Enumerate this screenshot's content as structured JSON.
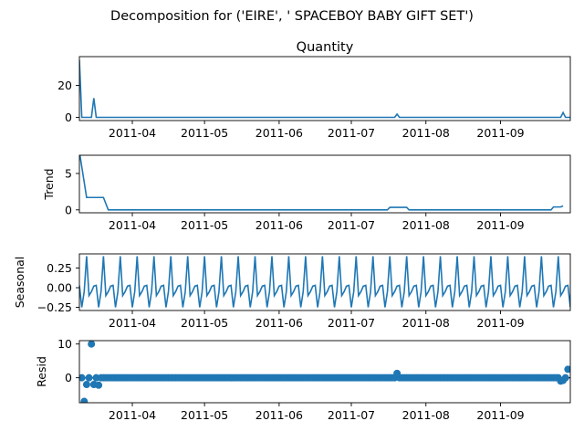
{
  "suptitle": "Decomposition for ('EIRE', ' SPACEBOY BABY GIFT SET')",
  "x_tick_labels": [
    "2011-04",
    "2011-05",
    "2011-06",
    "2011-07",
    "2011-08",
    "2011-09"
  ],
  "colors": {
    "series": "#1f77b4",
    "axis": "#000000",
    "background": "#ffffff"
  },
  "chart_data": [
    {
      "type": "line",
      "title": "Quantity",
      "ylabel": "",
      "x_start": "2011-03-10",
      "x_end": "2011-09-30",
      "ylim": [
        -2,
        38
      ],
      "yticks": [
        0,
        20
      ],
      "ytick_labels": [
        "0",
        "20"
      ],
      "points": [
        [
          "2011-03-10",
          36
        ],
        [
          "2011-03-11",
          0
        ],
        [
          "2011-03-15",
          0
        ],
        [
          "2011-03-16",
          12
        ],
        [
          "2011-03-17",
          0
        ],
        [
          "2011-07-19",
          0
        ],
        [
          "2011-07-20",
          2
        ],
        [
          "2011-07-21",
          0
        ],
        [
          "2011-09-26",
          0
        ],
        [
          "2011-09-27",
          3
        ],
        [
          "2011-09-28",
          0
        ],
        [
          "2011-09-30",
          0
        ]
      ]
    },
    {
      "type": "line",
      "title": "",
      "ylabel": "Trend",
      "x_start": "2011-03-10",
      "x_end": "2011-09-30",
      "ylim": [
        -0.4,
        7.5
      ],
      "yticks": [
        0,
        5
      ],
      "ytick_labels": [
        "0",
        "5"
      ],
      "points": [
        [
          "2011-03-10",
          8
        ],
        [
          "2011-03-13",
          1.7
        ],
        [
          "2011-03-20",
          1.7
        ],
        [
          "2011-03-22",
          0
        ],
        [
          "2011-07-16",
          0
        ],
        [
          "2011-07-17",
          0.35
        ],
        [
          "2011-07-24",
          0.35
        ],
        [
          "2011-07-25",
          0
        ],
        [
          "2011-09-22",
          0
        ],
        [
          "2011-09-23",
          0.4
        ],
        [
          "2011-09-26",
          0.4
        ],
        [
          "2011-09-27",
          0.55
        ]
      ]
    },
    {
      "type": "line",
      "title": "",
      "ylabel": "Seasonal",
      "x_start": "2011-03-10",
      "x_end": "2011-09-30",
      "ylim": [
        -0.29,
        0.43
      ],
      "yticks": [
        -0.25,
        0,
        0.25
      ],
      "ytick_labels": [
        "−0.25",
        "0.00",
        "0.25"
      ],
      "period_days": 7,
      "pattern": [
        0.03,
        -0.25,
        -0.05,
        0.4,
        -0.1,
        -0.05,
        0.02
      ]
    },
    {
      "type": "scatter",
      "title": "",
      "ylabel": "Resid",
      "x_start": "2011-03-10",
      "x_end": "2011-09-30",
      "ylim": [
        -7.4,
        11
      ],
      "yticks": [
        0,
        10
      ],
      "ytick_labels": [
        "0",
        "10"
      ],
      "zero_line": true,
      "points": [
        [
          "2011-03-12",
          -7
        ],
        [
          "2011-03-13",
          -2
        ],
        [
          "2011-03-15",
          10
        ],
        [
          "2011-03-16",
          -2
        ],
        [
          "2011-03-18",
          -2.2
        ],
        [
          "2011-03-19",
          0
        ],
        [
          "2011-07-20",
          1.3
        ],
        [
          "2011-09-26",
          -1
        ],
        [
          "2011-09-27",
          -0.8
        ],
        [
          "2011-09-29",
          2.5
        ]
      ],
      "baseline_every_days": 1,
      "baseline_value": 0
    }
  ]
}
